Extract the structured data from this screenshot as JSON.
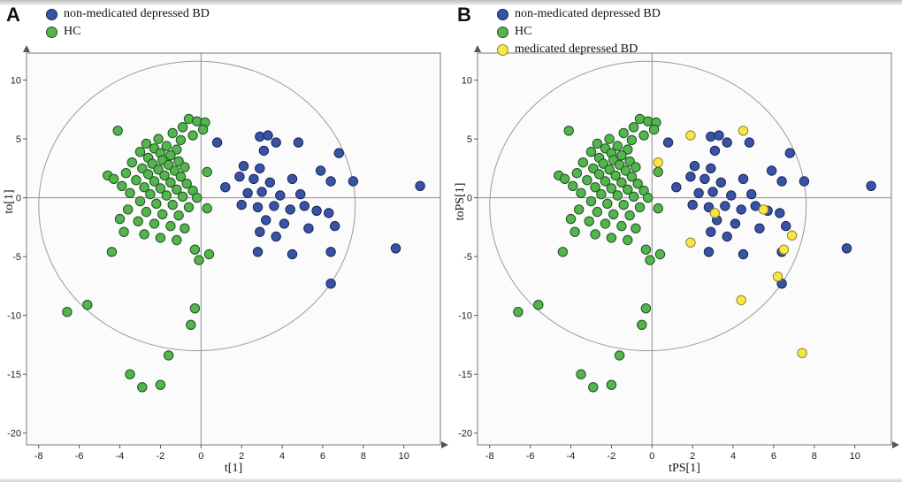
{
  "chart_data": {
    "type": "scatter",
    "xlim": [
      -8.6,
      11.8
    ],
    "ylim": [
      -21,
      12.3
    ],
    "xticks": [
      -8,
      -6,
      -4,
      -2,
      0,
      2,
      4,
      6,
      8,
      10
    ],
    "yticks": [
      10,
      5,
      0,
      -5,
      -10,
      -15,
      -20
    ],
    "grid": false,
    "ellipse": {
      "cx": -0.2,
      "cy": -0.7,
      "rx": 7.8,
      "ry": 12.3
    },
    "colors": {
      "plot_bg": "#fbfbfb",
      "frame": "#7a7a7a",
      "ellipse": "#9a9a9a",
      "crosshair": "#8c8c8c"
    },
    "series": {
      "bd": {
        "name": "non-medicated depressed BD",
        "color": "#3953a4",
        "stroke": "#17255c",
        "points": [
          [
            0.8,
            4.7
          ],
          [
            2.9,
            5.2
          ],
          [
            3.3,
            5.3
          ],
          [
            3.7,
            4.7
          ],
          [
            3.1,
            4.0
          ],
          [
            4.8,
            4.7
          ],
          [
            2.1,
            2.7
          ],
          [
            2.9,
            2.5
          ],
          [
            5.9,
            2.3
          ],
          [
            6.8,
            3.8
          ],
          [
            1.9,
            1.8
          ],
          [
            2.6,
            1.6
          ],
          [
            3.4,
            1.3
          ],
          [
            4.5,
            1.6
          ],
          [
            6.4,
            1.4
          ],
          [
            7.5,
            1.4
          ],
          [
            10.8,
            1.0
          ],
          [
            1.2,
            0.9
          ],
          [
            2.3,
            0.4
          ],
          [
            3.0,
            0.5
          ],
          [
            3.9,
            0.2
          ],
          [
            4.9,
            0.3
          ],
          [
            2.0,
            -0.6
          ],
          [
            2.8,
            -0.8
          ],
          [
            3.6,
            -0.7
          ],
          [
            4.4,
            -1.0
          ],
          [
            5.1,
            -0.7
          ],
          [
            5.7,
            -1.1
          ],
          [
            6.3,
            -1.3
          ],
          [
            3.2,
            -1.9
          ],
          [
            4.1,
            -2.2
          ],
          [
            5.3,
            -2.6
          ],
          [
            6.6,
            -2.4
          ],
          [
            2.9,
            -2.9
          ],
          [
            3.7,
            -3.3
          ],
          [
            9.6,
            -4.3
          ],
          [
            2.8,
            -4.6
          ],
          [
            4.5,
            -4.8
          ],
          [
            6.4,
            -4.6
          ],
          [
            6.4,
            -7.3
          ]
        ]
      },
      "hc": {
        "name": "HC",
        "color": "#54b44e",
        "stroke": "#1d5220",
        "points": [
          [
            -4.1,
            5.7
          ],
          [
            -0.6,
            6.7
          ],
          [
            -0.2,
            6.5
          ],
          [
            0.2,
            6.4
          ],
          [
            -0.9,
            6.0
          ],
          [
            0.1,
            5.8
          ],
          [
            -1.4,
            5.5
          ],
          [
            -0.4,
            5.3
          ],
          [
            -2.1,
            5.0
          ],
          [
            -1.0,
            4.9
          ],
          [
            -2.7,
            4.6
          ],
          [
            -1.7,
            4.4
          ],
          [
            -2.3,
            4.2
          ],
          [
            -1.2,
            4.1
          ],
          [
            -3.0,
            3.9
          ],
          [
            -2.0,
            3.8
          ],
          [
            -1.5,
            3.6
          ],
          [
            -2.6,
            3.4
          ],
          [
            -1.9,
            3.2
          ],
          [
            -1.1,
            3.1
          ],
          [
            -3.4,
            3.0
          ],
          [
            -2.4,
            2.9
          ],
          [
            -1.6,
            2.8
          ],
          [
            -0.8,
            2.6
          ],
          [
            -2.9,
            2.5
          ],
          [
            -2.1,
            2.4
          ],
          [
            -1.3,
            2.3
          ],
          [
            0.3,
            2.2
          ],
          [
            -3.7,
            2.1
          ],
          [
            -2.6,
            2.0
          ],
          [
            -4.6,
            1.9
          ],
          [
            -1.8,
            1.9
          ],
          [
            -1.0,
            1.8
          ],
          [
            -4.3,
            1.6
          ],
          [
            -3.2,
            1.5
          ],
          [
            -2.3,
            1.4
          ],
          [
            -1.5,
            1.3
          ],
          [
            -0.7,
            1.2
          ],
          [
            -3.9,
            1.0
          ],
          [
            -2.8,
            0.9
          ],
          [
            -2.0,
            0.8
          ],
          [
            -1.2,
            0.7
          ],
          [
            -0.4,
            0.6
          ],
          [
            -3.5,
            0.4
          ],
          [
            -2.5,
            0.3
          ],
          [
            -1.7,
            0.2
          ],
          [
            -0.9,
            0.1
          ],
          [
            -0.2,
            0.0
          ],
          [
            -3.0,
            -0.3
          ],
          [
            -2.2,
            -0.5
          ],
          [
            -1.4,
            -0.6
          ],
          [
            -0.6,
            -0.8
          ],
          [
            0.3,
            -0.9
          ],
          [
            -3.6,
            -1.0
          ],
          [
            -2.7,
            -1.2
          ],
          [
            -1.9,
            -1.4
          ],
          [
            -1.1,
            -1.5
          ],
          [
            -4.0,
            -1.8
          ],
          [
            -3.1,
            -2.0
          ],
          [
            -2.3,
            -2.2
          ],
          [
            -1.5,
            -2.4
          ],
          [
            -0.8,
            -2.6
          ],
          [
            -3.8,
            -2.9
          ],
          [
            -2.8,
            -3.1
          ],
          [
            -2.0,
            -3.4
          ],
          [
            -1.2,
            -3.6
          ],
          [
            -4.4,
            -4.6
          ],
          [
            -0.3,
            -4.4
          ],
          [
            0.4,
            -4.8
          ],
          [
            -0.1,
            -5.3
          ],
          [
            -6.6,
            -9.7
          ],
          [
            -5.6,
            -9.1
          ],
          [
            -0.3,
            -9.4
          ],
          [
            -0.5,
            -10.8
          ],
          [
            -1.6,
            -13.4
          ],
          [
            -3.5,
            -15.0
          ],
          [
            -2.9,
            -16.1
          ],
          [
            -2.0,
            -15.9
          ]
        ]
      },
      "med": {
        "name": "medicated depressed BD",
        "color": "#f7e64a",
        "stroke": "#948520",
        "points": [
          [
            1.9,
            5.3
          ],
          [
            4.5,
            5.7
          ],
          [
            0.3,
            3.0
          ],
          [
            3.1,
            -1.3
          ],
          [
            5.5,
            -1.0
          ],
          [
            6.9,
            -3.2
          ],
          [
            1.9,
            -3.8
          ],
          [
            6.5,
            -4.4
          ],
          [
            6.2,
            -6.7
          ],
          [
            4.4,
            -8.7
          ],
          [
            7.4,
            -13.2
          ]
        ]
      }
    },
    "panels": [
      {
        "label": "A",
        "xlabel": "t[1]",
        "ylabel": "to[1]",
        "series": [
          "hc",
          "bd"
        ]
      },
      {
        "label": "B",
        "xlabel": "tPS[1]",
        "ylabel": "toPS[1]",
        "series": [
          "hc",
          "bd",
          "med"
        ]
      }
    ]
  }
}
